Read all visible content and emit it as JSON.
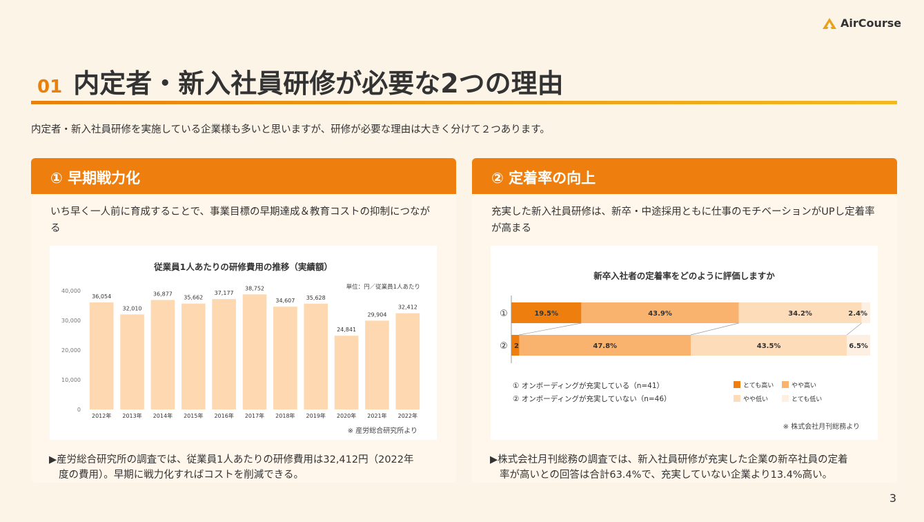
{
  "logo": {
    "text": "AirCourse",
    "icon": "aircourse-logo-icon"
  },
  "title": {
    "number": "01",
    "text": "内定者・新入社員研修が必要な2つの理由"
  },
  "intro": "内定者・新入社員研修を実施している企業様も多いと思いますが、研修が必要な理由は大きく分けて２つあります。",
  "colors": {
    "accent": "#ee7f0e",
    "bar": "#fdd8b0",
    "panel": "#fff7ec",
    "page": "#fdf4e8"
  },
  "left": {
    "heading": "① 早期戦力化",
    "description": "いち早く一人前に育成することで、事業目標の早期達成＆教育コストの抑制につながる",
    "note_line1": "▶産労総合研究所の調査では、従業員1人あたりの研修費用は32,412円（2022年",
    "note_line2": "度の費用）。早期に戦力化すればコストを削減できる。"
  },
  "right": {
    "heading": "② 定着率の向上",
    "description": "充実した新入社員研修は、新卒・中途採用ともに仕事のモチベーションがUPし定着率が高まる",
    "note_line1": "▶株式会社月刊総務の調査では、新入社員研修が充実した企業の新卒社員の定着",
    "note_line2": "率が高いとの回答は合計63.4%で、充実していない企業より13.4%高い。"
  },
  "chart_data": [
    {
      "type": "bar",
      "title": "従業員1人あたりの研修費用の推移（実績額）",
      "unit_note": "単位：円／従業員1人あたり",
      "source": "※ 産労総合研究所より",
      "categories": [
        "2012年",
        "2013年",
        "2014年",
        "2015年",
        "2016年",
        "2017年",
        "2018年",
        "2019年",
        "2020年",
        "2021年",
        "2022年"
      ],
      "values": [
        36054,
        32010,
        36877,
        35662,
        37177,
        38752,
        34607,
        35628,
        24841,
        29904,
        32412
      ],
      "value_labels": [
        "36,054",
        "32,010",
        "36,877",
        "35,662",
        "37,177",
        "38,752",
        "34,607",
        "35,628",
        "24,841",
        "29,904",
        "32,412"
      ],
      "yticks": [
        "0",
        "10,000",
        "20,000",
        "30,000",
        "40,000"
      ],
      "ylim": [
        0,
        40000
      ],
      "grid": false
    },
    {
      "type": "bar",
      "stacked": "100%",
      "orientation": "horizontal",
      "title": "新卒入社者の定着率をどのように評価しますか",
      "source": "※ 株式会社月刊総務より",
      "categories": [
        "①",
        "②"
      ],
      "category_descriptions": [
        "① オンボーディングが充実している（n=41）",
        "② オンボーディングが充実していない（n=46）"
      ],
      "series": [
        {
          "name": "とても高い",
          "color": "#ee7f0e",
          "values": [
            19.5,
            2.2
          ],
          "labels": [
            "19.5%",
            "2.2%"
          ]
        },
        {
          "name": "やや高い",
          "color": "#f9b36e",
          "values": [
            43.9,
            47.8
          ],
          "labels": [
            "43.9%",
            "47.8%"
          ]
        },
        {
          "name": "やや低い",
          "color": "#fddcba",
          "values": [
            34.2,
            43.5
          ],
          "labels": [
            "34.2%",
            "43.5%"
          ]
        },
        {
          "name": "とても低い",
          "color": "#fdf0e2",
          "values": [
            2.4,
            6.5
          ],
          "labels": [
            "2.4%",
            "6.5%"
          ]
        }
      ],
      "legend_position": "bottom-right"
    }
  ],
  "page_number": "3"
}
